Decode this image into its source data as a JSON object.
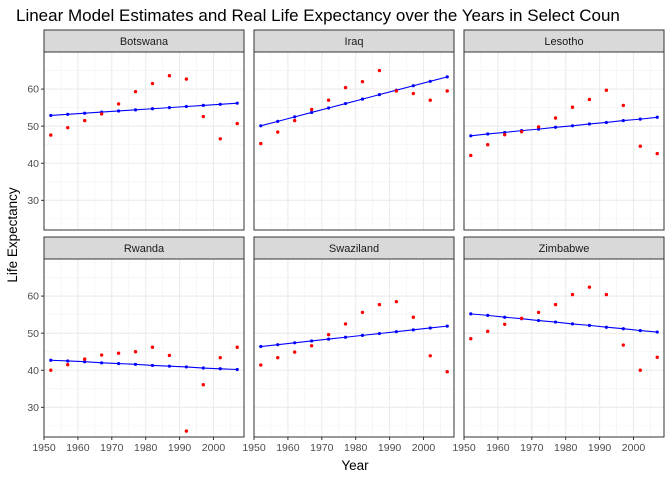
{
  "chart_data": {
    "type": "line",
    "title": "Linear Model Estimates and Real Life Expectancy over the Years in Select Coun",
    "xlabel": "Year",
    "ylabel": "Life Expectancy",
    "xlim": [
      1950,
      2009
    ],
    "ylim": [
      22,
      70
    ],
    "x_ticks": [
      1950,
      1960,
      1970,
      1980,
      1990,
      2000
    ],
    "y_ticks": [
      30,
      40,
      50,
      60
    ],
    "grid": true,
    "colors": {
      "actual": "#ff0000",
      "model": "#0000ff",
      "strip": "#d9d9d9",
      "grid": "#ebebeb"
    },
    "x": [
      1952,
      1957,
      1962,
      1967,
      1972,
      1977,
      1982,
      1987,
      1992,
      1997,
      2002,
      2007
    ],
    "panels": [
      {
        "name": "Botswana",
        "actual": [
          47.6,
          49.6,
          51.5,
          53.3,
          56.0,
          59.3,
          61.5,
          63.6,
          62.7,
          52.6,
          46.6,
          50.7
        ],
        "model": [
          52.9,
          53.2,
          53.5,
          53.8,
          54.1,
          54.4,
          54.7,
          55.0,
          55.3,
          55.6,
          55.9,
          56.2
        ]
      },
      {
        "name": "Iraq",
        "actual": [
          45.3,
          48.4,
          51.5,
          54.5,
          57.0,
          60.4,
          62.0,
          65.0,
          59.5,
          58.8,
          57.0,
          59.5
        ],
        "model": [
          50.1,
          51.3,
          52.5,
          53.7,
          54.9,
          56.1,
          57.3,
          58.5,
          59.7,
          60.9,
          62.1,
          63.3
        ]
      },
      {
        "name": "Lesotho",
        "actual": [
          42.1,
          45.0,
          47.7,
          48.5,
          49.8,
          52.2,
          55.1,
          57.2,
          59.7,
          55.6,
          44.6,
          42.6
        ],
        "model": [
          47.4,
          47.9,
          48.3,
          48.8,
          49.2,
          49.7,
          50.1,
          50.6,
          51.0,
          51.5,
          51.9,
          52.4
        ]
      },
      {
        "name": "Rwanda",
        "actual": [
          40.0,
          41.5,
          43.0,
          44.1,
          44.6,
          45.0,
          46.2,
          44.0,
          23.6,
          36.1,
          43.4,
          46.2
        ],
        "model": [
          42.7,
          42.5,
          42.3,
          42.0,
          41.8,
          41.6,
          41.3,
          41.1,
          40.9,
          40.6,
          40.4,
          40.2
        ]
      },
      {
        "name": "Swaziland",
        "actual": [
          41.4,
          43.4,
          44.9,
          46.6,
          49.6,
          52.5,
          55.6,
          57.7,
          58.5,
          54.3,
          43.9,
          39.6
        ],
        "model": [
          46.4,
          46.9,
          47.4,
          47.9,
          48.4,
          48.9,
          49.4,
          49.9,
          50.4,
          50.9,
          51.4,
          51.9
        ]
      },
      {
        "name": "Zimbabwe",
        "actual": [
          48.5,
          50.5,
          52.4,
          54.0,
          55.6,
          57.7,
          60.4,
          62.4,
          60.4,
          46.8,
          40.0,
          43.5
        ],
        "model": [
          55.2,
          54.8,
          54.3,
          53.9,
          53.4,
          53.0,
          52.5,
          52.1,
          51.6,
          51.2,
          50.7,
          50.3
        ]
      }
    ]
  }
}
